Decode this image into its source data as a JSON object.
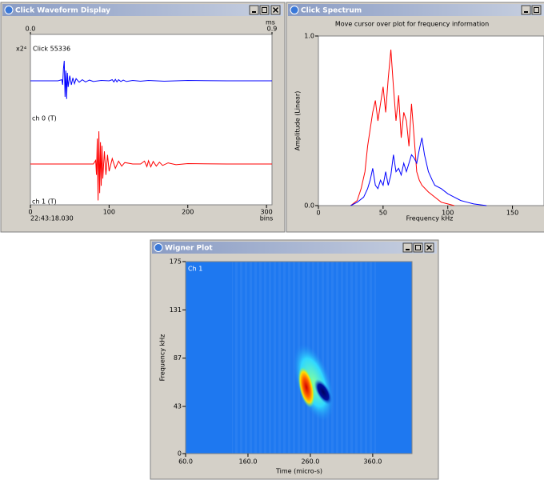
{
  "window_titles": [
    "Click Waveform Display",
    "Click Spectrum",
    "Wigner Plot"
  ],
  "chart_data": [
    {
      "type": "line",
      "annotation": "Click 55336",
      "scale_label": "x2⁴",
      "time_label": "22:43:18.030",
      "x2label": "ms",
      "x2lim": [
        0,
        0.9
      ],
      "x2ticks": [
        {
          "value": 0,
          "label": "0.0"
        },
        {
          "value": 0.9,
          "label": "0.9"
        }
      ],
      "xlabel": "bins",
      "xlim": [
        0,
        307
      ],
      "xticks": [
        0,
        100,
        200,
        300
      ],
      "ylim": [
        -1.1,
        1.1
      ],
      "series": [
        {
          "name": "ch 0 (T)",
          "color": "#0000ff",
          "x": [
            0,
            35,
            40,
            41,
            42,
            43,
            44,
            45,
            46,
            47,
            48,
            50,
            52,
            54,
            56,
            58,
            62,
            66,
            70,
            75,
            80,
            90,
            100,
            104,
            106,
            108,
            110,
            112,
            115,
            118,
            122,
            130,
            140,
            150,
            170,
            200,
            250,
            307
          ],
          "values": [
            0,
            0,
            0.03,
            -0.11,
            0.33,
            0.55,
            -0.44,
            0.28,
            -0.5,
            0.22,
            -0.17,
            0.14,
            -0.11,
            0.08,
            -0.08,
            0.06,
            -0.04,
            0.03,
            -0.03,
            0.02,
            -0.02,
            0.01,
            0,
            0.03,
            -0.03,
            0.04,
            -0.03,
            0.03,
            -0.02,
            0.02,
            -0.02,
            0.01,
            -0.01,
            0.01,
            -0.01,
            0.01,
            0,
            0
          ]
        },
        {
          "name": "ch 1 (T)",
          "color": "#ff0000",
          "x": [
            0,
            80,
            83,
            84,
            85,
            86,
            87,
            88,
            89,
            90,
            91,
            92,
            94,
            96,
            98,
            100,
            104,
            108,
            112,
            116,
            120,
            130,
            140,
            145,
            148,
            150,
            153,
            156,
            160,
            164,
            168,
            175,
            185,
            200,
            250,
            307
          ],
          "values": [
            0,
            0,
            0.1,
            -0.3,
            0.7,
            -1.0,
            0.9,
            -0.8,
            0.6,
            -0.6,
            0.5,
            -0.4,
            0.35,
            -0.3,
            0.25,
            -0.2,
            0.15,
            -0.12,
            0.08,
            -0.06,
            0.04,
            0,
            0,
            0.08,
            -0.07,
            0.09,
            -0.08,
            0.07,
            -0.06,
            0.05,
            -0.04,
            0.03,
            -0.02,
            0.01,
            0,
            0
          ]
        }
      ]
    },
    {
      "type": "line",
      "subtitle": "Move cursor over plot for frequency information",
      "xlabel": "Frequency kHz",
      "ylabel": "Amplitude (Linear)",
      "xlim": [
        0,
        175
      ],
      "xticks": [
        0,
        50,
        100,
        150
      ],
      "ylim": [
        0,
        1
      ],
      "yticks": [
        {
          "value": 0,
          "label": "0.0"
        },
        {
          "value": 1,
          "label": "1.0"
        }
      ],
      "series": [
        {
          "color": "#ff0000",
          "x": [
            25,
            30,
            33,
            36,
            38,
            40,
            42,
            44,
            46,
            48,
            50,
            52,
            54,
            56,
            58,
            60,
            62,
            64,
            66,
            68,
            70,
            72,
            74,
            76,
            78,
            80,
            85,
            90,
            95,
            100,
            105
          ],
          "values": [
            0,
            0.03,
            0.1,
            0.2,
            0.35,
            0.45,
            0.55,
            0.62,
            0.5,
            0.6,
            0.7,
            0.55,
            0.75,
            0.92,
            0.7,
            0.5,
            0.65,
            0.4,
            0.55,
            0.5,
            0.35,
            0.6,
            0.4,
            0.2,
            0.15,
            0.12,
            0.08,
            0.05,
            0.02,
            0.01,
            0
          ]
        },
        {
          "color": "#0000ff",
          "x": [
            25,
            30,
            35,
            38,
            40,
            42,
            44,
            46,
            48,
            50,
            52,
            54,
            56,
            58,
            60,
            62,
            64,
            66,
            68,
            70,
            72,
            74,
            76,
            78,
            80,
            82,
            85,
            88,
            90,
            95,
            100,
            105,
            110,
            115,
            120,
            130
          ],
          "values": [
            0,
            0.02,
            0.05,
            0.1,
            0.15,
            0.22,
            0.12,
            0.1,
            0.15,
            0.12,
            0.2,
            0.12,
            0.18,
            0.3,
            0.2,
            0.22,
            0.18,
            0.25,
            0.2,
            0.25,
            0.3,
            0.28,
            0.25,
            0.33,
            0.4,
            0.3,
            0.2,
            0.15,
            0.12,
            0.1,
            0.07,
            0.05,
            0.03,
            0.02,
            0.01,
            0
          ]
        }
      ]
    },
    {
      "type": "image",
      "annotation": "Ch 1",
      "xlabel": "Time (micro-s)",
      "ylabel": "Frequency kHz",
      "xlim": [
        60,
        423
      ],
      "xticks": [
        {
          "value": 60,
          "label": "60.0"
        },
        {
          "value": 160,
          "label": "160.0"
        },
        {
          "value": 260,
          "label": "260.0"
        },
        {
          "value": 360,
          "label": "360.0"
        }
      ],
      "ylim": [
        0,
        175
      ],
      "yticks": [
        0,
        43,
        87,
        131,
        175
      ]
    }
  ]
}
